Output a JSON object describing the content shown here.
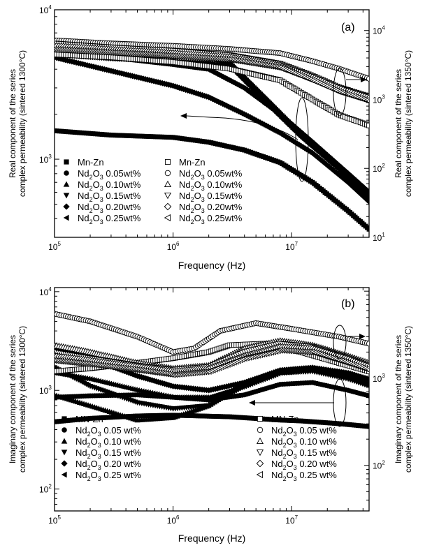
{
  "chart_data": [
    {
      "panel_label": "(a)",
      "type": "scatter",
      "title": "",
      "xlabel": "Frequency (Hz)",
      "ylabel_left": "Real component of the series complex permeability (sintered 1300°C)",
      "ylabel_right": "Real component of the series complex permeability (sintered 1350°C)",
      "x_scale": "log",
      "xlim": [
        100000,
        45000000
      ],
      "ylim_left": [
        300,
        10000
      ],
      "ylim_right": [
        10,
        20000
      ],
      "x_ticks": [
        {
          "value": 100000,
          "base": "10",
          "exp": "5"
        },
        {
          "value": 1000000,
          "base": "10",
          "exp": "6"
        },
        {
          "value": 10000000,
          "base": "10",
          "exp": "7"
        }
      ],
      "y_ticks_left": [
        {
          "value": 1000,
          "base": "10",
          "exp": "3"
        },
        {
          "value": 10000,
          "base": "10",
          "exp": "4"
        }
      ],
      "y_ticks_right": [
        {
          "value": 10,
          "base": "10",
          "exp": "1"
        },
        {
          "value": 100,
          "base": "10",
          "exp": "2"
        },
        {
          "value": 1000,
          "base": "10",
          "exp": "3"
        },
        {
          "value": 10000,
          "base": "10",
          "exp": "4"
        }
      ],
      "legend_left": [
        {
          "marker": "square-filled",
          "pre": "Mn-Zn",
          "sub1": "",
          "mid": "",
          "sub2": "",
          "post": ""
        },
        {
          "marker": "circle-filled",
          "pre": "Nd",
          "sub1": "2",
          "mid": "O",
          "sub2": "3",
          "post": " 0.05wt%"
        },
        {
          "marker": "triangle-up-filled",
          "pre": "Nd",
          "sub1": "2",
          "mid": "O",
          "sub2": "3",
          "post": " 0.10wt%"
        },
        {
          "marker": "triangle-down-filled",
          "pre": "Nd",
          "sub1": "2",
          "mid": "O",
          "sub2": "3",
          "post": " 0.15wt%"
        },
        {
          "marker": "diamond-filled",
          "pre": "Nd",
          "sub1": "2",
          "mid": "O",
          "sub2": "3",
          "post": " 0.20wt%"
        },
        {
          "marker": "triangle-left-filled",
          "pre": "Nd",
          "sub1": "2",
          "mid": "O",
          "sub2": "3",
          "post": " 0.25wt%"
        }
      ],
      "legend_right": [
        {
          "marker": "square-open",
          "pre": "Mn-Zn",
          "sub1": "",
          "mid": "",
          "sub2": "",
          "post": ""
        },
        {
          "marker": "circle-open",
          "pre": "Nd",
          "sub1": "2",
          "mid": "O",
          "sub2": "3",
          "post": " 0.05wt%"
        },
        {
          "marker": "triangle-up-open",
          "pre": "Nd",
          "sub1": "2",
          "mid": "O",
          "sub2": "3",
          "post": " 0.10wt%"
        },
        {
          "marker": "triangle-down-open",
          "pre": "Nd",
          "sub1": "2",
          "mid": "O",
          "sub2": "3",
          "post": " 0.15wt%"
        },
        {
          "marker": "diamond-open",
          "pre": "Nd",
          "sub1": "2",
          "mid": "O",
          "sub2": "3",
          "post": " 0.20wt%"
        },
        {
          "marker": "triangle-left-open",
          "pre": "Nd",
          "sub1": "2",
          "mid": "O",
          "sub2": "3",
          "post": " 0.25wt%"
        }
      ],
      "series": [
        {
          "axis": "left",
          "marker": "square-filled",
          "x": [
            100000,
            300000,
            1000000,
            2000000,
            4000000,
            8000000,
            15000000,
            30000000,
            45000000
          ],
          "y": [
            1550,
            1450,
            1400,
            1300,
            1150,
            950,
            700,
            450,
            340
          ]
        },
        {
          "axis": "left",
          "marker": "circle-filled",
          "x": [
            100000,
            300000,
            1000000,
            2000000,
            4000000,
            8000000,
            15000000,
            30000000,
            45000000
          ],
          "y": [
            5200,
            4800,
            4300,
            4000,
            3000,
            2000,
            1300,
            800,
            600
          ]
        },
        {
          "axis": "left",
          "marker": "triangle-up-filled",
          "x": [
            100000,
            300000,
            1000000,
            2000000,
            3000000,
            6000000,
            12000000,
            25000000,
            45000000
          ],
          "y": [
            5600,
            5200,
            4900,
            4800,
            4500,
            2600,
            1500,
            900,
            580
          ]
        },
        {
          "axis": "left",
          "marker": "triangle-down-filled",
          "x": [
            100000,
            300000,
            1000000,
            2000000,
            3000000,
            6000000,
            12000000,
            25000000,
            45000000
          ],
          "y": [
            5400,
            5000,
            4800,
            4700,
            4300,
            2500,
            1450,
            880,
            560
          ]
        },
        {
          "axis": "left",
          "marker": "diamond-filled",
          "x": [
            100000,
            300000,
            1000000,
            2000000,
            4000000,
            8000000,
            15000000,
            30000000,
            45000000
          ],
          "y": [
            4800,
            3900,
            3100,
            2600,
            2000,
            1500,
            1100,
            700,
            520
          ]
        },
        {
          "axis": "left",
          "marker": "triangle-left-filled",
          "x": [
            100000,
            300000,
            1000000,
            2000000,
            3000000,
            6000000,
            12000000,
            25000000,
            45000000
          ],
          "y": [
            5000,
            4700,
            4500,
            4400,
            4200,
            2400,
            1400,
            850,
            540
          ]
        },
        {
          "axis": "right",
          "marker": "square-open",
          "x": [
            100000,
            300000,
            1000000,
            3000000,
            8000000,
            15000000,
            25000000,
            45000000
          ],
          "y": [
            4500,
            4100,
            3500,
            2800,
            1900,
            1000,
            600,
            420
          ]
        },
        {
          "axis": "right",
          "marker": "circle-open",
          "x": [
            100000,
            300000,
            1000000,
            3000000,
            8000000,
            15000000,
            25000000,
            45000000
          ],
          "y": [
            7200,
            6500,
            6000,
            5400,
            4700,
            3600,
            2800,
            2000
          ]
        },
        {
          "axis": "right",
          "marker": "triangle-up-open",
          "x": [
            100000,
            300000,
            1000000,
            3000000,
            8000000,
            15000000,
            25000000,
            45000000
          ],
          "y": [
            5600,
            5000,
            4500,
            4000,
            3000,
            2000,
            1400,
            1000
          ]
        },
        {
          "axis": "right",
          "marker": "triangle-down-open",
          "x": [
            100000,
            300000,
            1000000,
            3000000,
            8000000,
            15000000,
            25000000,
            45000000
          ],
          "y": [
            6500,
            5700,
            5100,
            4400,
            3300,
            2200,
            1500,
            1100
          ]
        },
        {
          "axis": "right",
          "marker": "diamond-open",
          "x": [
            100000,
            300000,
            1000000,
            3000000,
            8000000,
            15000000,
            25000000,
            45000000
          ],
          "y": [
            6000,
            5300,
            4700,
            4100,
            3100,
            2100,
            1450,
            1050
          ]
        },
        {
          "axis": "right",
          "marker": "triangle-left-open",
          "x": [
            100000,
            300000,
            1000000,
            3000000,
            8000000,
            15000000,
            25000000,
            45000000
          ],
          "y": [
            5300,
            4800,
            4300,
            3800,
            2900,
            1900,
            1300,
            950
          ]
        }
      ]
    },
    {
      "panel_label": "(b)",
      "type": "scatter",
      "title": "",
      "xlabel": "Frequency (Hz)",
      "ylabel_left": "Imaginary component of the series complex permeability (sintered 1300°C)",
      "ylabel_right": "Imaginary component of the series complex permeability (sintered 1350°C)",
      "x_scale": "log",
      "xlim": [
        100000,
        45000000
      ],
      "ylim_left": [
        60,
        11000
      ],
      "ylim_right": [
        30,
        11000
      ],
      "x_ticks": [
        {
          "value": 100000,
          "base": "10",
          "exp": "5"
        },
        {
          "value": 1000000,
          "base": "10",
          "exp": "6"
        },
        {
          "value": 10000000,
          "base": "10",
          "exp": "7"
        }
      ],
      "y_ticks_left": [
        {
          "value": 100,
          "base": "10",
          "exp": "2"
        },
        {
          "value": 1000,
          "base": "10",
          "exp": "3"
        },
        {
          "value": 10000,
          "base": "10",
          "exp": "4"
        }
      ],
      "y_ticks_right": [
        {
          "value": 100,
          "base": "10",
          "exp": "2"
        },
        {
          "value": 1000,
          "base": "10",
          "exp": "3"
        }
      ],
      "legend_left": [
        {
          "marker": "square-filled",
          "pre": "MN-Zn",
          "sub1": "",
          "mid": "",
          "sub2": "",
          "post": ""
        },
        {
          "marker": "circle-filled",
          "pre": "Nd",
          "sub1": "2",
          "mid": "O",
          "sub2": "3",
          "post": " 0.05 wt%"
        },
        {
          "marker": "triangle-up-filled",
          "pre": "Nd",
          "sub1": "2",
          "mid": "O",
          "sub2": "3",
          "post": " 0.10 wt%"
        },
        {
          "marker": "triangle-down-filled",
          "pre": "Nd",
          "sub1": "2",
          "mid": "O",
          "sub2": "3",
          "post": " 0.15 wt%"
        },
        {
          "marker": "diamond-filled",
          "pre": "Nd",
          "sub1": "2",
          "mid": "O",
          "sub2": "3",
          "post": " 0.20 wt%"
        },
        {
          "marker": "triangle-left-filled",
          "pre": "Nd",
          "sub1": "2",
          "mid": "O",
          "sub2": "3",
          "post": " 0.25 wt%"
        }
      ],
      "legend_right": [
        {
          "marker": "square-open",
          "pre": "MN-Zn",
          "sub1": "",
          "mid": "",
          "sub2": "",
          "post": ""
        },
        {
          "marker": "circle-open",
          "pre": "Nd",
          "sub1": "2",
          "mid": "O",
          "sub2": "3",
          "post": " 0.05 wt%"
        },
        {
          "marker": "triangle-up-open",
          "pre": "Nd",
          "sub1": "2",
          "mid": "O",
          "sub2": "3",
          "post": " 0.10 wt%"
        },
        {
          "marker": "triangle-down-open",
          "pre": "Nd",
          "sub1": "2",
          "mid": "O",
          "sub2": "3",
          "post": " 0.15 wt%"
        },
        {
          "marker": "diamond-open",
          "pre": "Nd",
          "sub1": "2",
          "mid": "O",
          "sub2": "3",
          "post": " 0.20 wt%"
        },
        {
          "marker": "triangle-left-open",
          "pre": "Nd",
          "sub1": "2",
          "mid": "O",
          "sub2": "3",
          "post": " 0.25 wt%"
        }
      ],
      "series": [
        {
          "axis": "left",
          "marker": "square-filled",
          "x": [
            100000,
            200000,
            500000,
            1000000,
            3000000,
            8000000,
            12000000,
            25000000,
            45000000
          ],
          "y": [
            480,
            520,
            550,
            560,
            540,
            500,
            490,
            460,
            430
          ]
        },
        {
          "axis": "left",
          "marker": "circle-filled",
          "x": [
            100000,
            200000,
            500000,
            1000000,
            2000000,
            4000000,
            8000000,
            15000000,
            30000000,
            45000000
          ],
          "y": [
            850,
            880,
            900,
            850,
            800,
            900,
            1150,
            1200,
            1000,
            880
          ]
        },
        {
          "axis": "left",
          "marker": "triangle-up-filled",
          "x": [
            100000,
            200000,
            500000,
            1000000,
            2000000,
            4000000,
            8000000,
            15000000,
            30000000,
            45000000
          ],
          "y": [
            900,
            700,
            500,
            530,
            700,
            1200,
            1600,
            1650,
            1400,
            1200
          ]
        },
        {
          "axis": "left",
          "marker": "triangle-down-filled",
          "x": [
            100000,
            200000,
            500000,
            1000000,
            2000000,
            4000000,
            8000000,
            15000000,
            30000000,
            45000000
          ],
          "y": [
            1700,
            1100,
            750,
            650,
            700,
            1100,
            1500,
            1550,
            1300,
            1100
          ]
        },
        {
          "axis": "left",
          "marker": "diamond-filled",
          "x": [
            100000,
            200000,
            500000,
            1000000,
            2000000,
            4000000,
            8000000,
            15000000,
            30000000,
            45000000
          ],
          "y": [
            2700,
            2100,
            1400,
            1100,
            1000,
            1200,
            1600,
            1700,
            1500,
            1300
          ]
        },
        {
          "axis": "left",
          "marker": "triangle-left-filled",
          "x": [
            100000,
            200000,
            500000,
            1000000,
            2000000,
            4000000,
            8000000,
            15000000,
            30000000,
            45000000
          ],
          "y": [
            1500,
            1300,
            1000,
            850,
            850,
            1100,
            1500,
            1600,
            1350,
            1150
          ]
        },
        {
          "axis": "right",
          "marker": "square-open",
          "x": [
            100000,
            200000,
            500000,
            1000000,
            2000000,
            3000000,
            6000000,
            12000000,
            25000000,
            45000000
          ],
          "y": [
            1200,
            1300,
            1500,
            1700,
            2000,
            2400,
            2500,
            2000,
            1500,
            1200
          ]
        },
        {
          "axis": "right",
          "marker": "circle-open",
          "x": [
            100000,
            200000,
            500000,
            1000000,
            1500000,
            2500000,
            5000000,
            10000000,
            25000000,
            45000000
          ],
          "y": [
            5500,
            4500,
            3000,
            2000,
            2200,
            3500,
            4300,
            3700,
            3000,
            2500
          ]
        },
        {
          "axis": "right",
          "marker": "triangle-up-open",
          "x": [
            100000,
            200000,
            500000,
            1000000,
            2000000,
            4000000,
            8000000,
            15000000,
            30000000,
            45000000
          ],
          "y": [
            2400,
            2000,
            1500,
            1300,
            1400,
            2200,
            2700,
            2400,
            1800,
            1500
          ]
        },
        {
          "axis": "right",
          "marker": "triangle-down-open",
          "x": [
            100000,
            200000,
            500000,
            1000000,
            2000000,
            4000000,
            8000000,
            15000000,
            30000000,
            45000000
          ],
          "y": [
            2000,
            1700,
            1400,
            1250,
            1350,
            2000,
            2500,
            2300,
            1700,
            1400
          ]
        },
        {
          "axis": "right",
          "marker": "diamond-open",
          "x": [
            100000,
            200000,
            500000,
            1000000,
            2000000,
            4000000,
            8000000,
            15000000,
            30000000,
            45000000
          ],
          "y": [
            1800,
            1600,
            1350,
            1200,
            1300,
            1800,
            2300,
            2200,
            1650,
            1350
          ]
        },
        {
          "axis": "right",
          "marker": "triangle-left-open",
          "x": [
            100000,
            200000,
            500000,
            1000000,
            2000000,
            4000000,
            8000000,
            15000000,
            30000000,
            45000000
          ],
          "y": [
            1600,
            1450,
            1250,
            1100,
            1200,
            1700,
            2100,
            2000,
            1500,
            1250
          ]
        }
      ]
    }
  ]
}
